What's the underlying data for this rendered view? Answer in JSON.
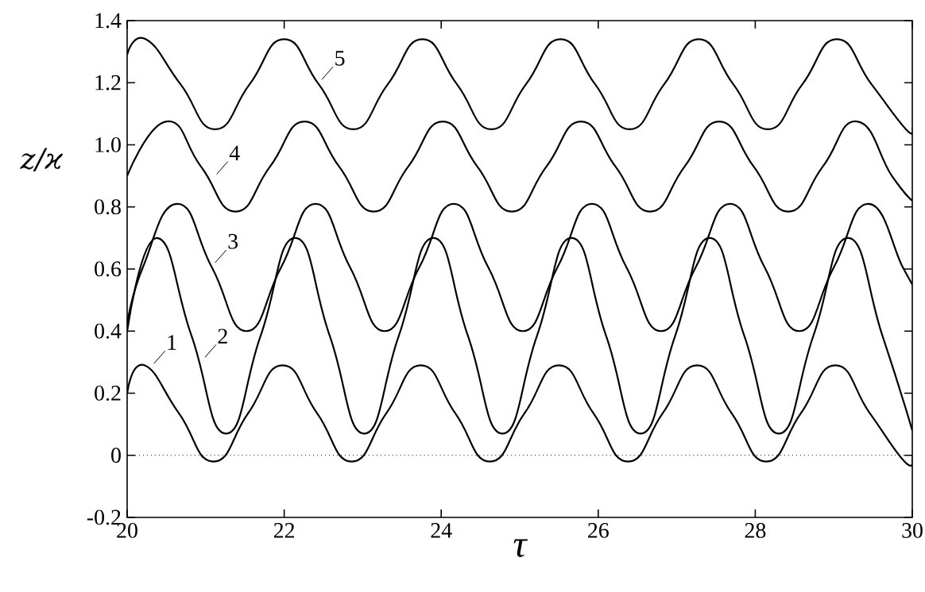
{
  "chart_data": {
    "type": "line",
    "xlabel": "τ",
    "ylabel": "z/ϰ",
    "xlim": [
      20,
      30
    ],
    "ylim": [
      -0.2,
      1.4
    ],
    "xticks": [
      20,
      22,
      24,
      26,
      28,
      30
    ],
    "yticks": [
      -0.2,
      0,
      0.2,
      0.4,
      0.6,
      0.8,
      {
        "value": 1,
        "label": "1.0"
      },
      1.2,
      1.4
    ],
    "grid": false,
    "marker": "none",
    "line_style": "solid",
    "ref_lines": [
      {
        "axis": "y",
        "value": 0,
        "color": "#000000",
        "line_style": "dotted"
      }
    ],
    "annotations": [
      {
        "text": "1",
        "x": 20.3,
        "y": 0.28
      },
      {
        "text": "2",
        "x": 20.95,
        "y": 0.3
      },
      {
        "text": "3",
        "x": 21.08,
        "y": 0.605
      },
      {
        "text": "4",
        "x": 21.1,
        "y": 0.89
      },
      {
        "text": "5",
        "x": 22.44,
        "y": 1.195
      }
    ],
    "series": [
      {
        "color": "#000000",
        "x": [
          20,
          20.22,
          20.66,
          21.1,
          21.54,
          21.98,
          22.42,
          22.86,
          23.3,
          23.74,
          24.18,
          24.62,
          25.06,
          25.5,
          25.94,
          26.38,
          26.82,
          27.26,
          27.7,
          28.14,
          28.58,
          29.02,
          29.46,
          29.9,
          30
        ],
        "values": [
          0.2,
          0.29,
          0.135,
          -0.02,
          0.135,
          0.29,
          0.135,
          -0.02,
          0.135,
          0.29,
          0.135,
          -0.02,
          0.135,
          0.29,
          0.135,
          -0.02,
          0.135,
          0.29,
          0.135,
          -0.02,
          0.135,
          0.29,
          0.135,
          -0.02,
          -0.01
        ]
      },
      {
        "color": "#000000",
        "x": [
          20,
          20.38,
          20.82,
          21.26,
          21.7,
          22.14,
          22.58,
          23.02,
          23.46,
          23.9,
          24.34,
          24.78,
          25.22,
          25.66,
          26.1,
          26.54,
          26.98,
          27.42,
          27.86,
          28.3,
          28.74,
          29.18,
          29.62,
          30
        ],
        "values": [
          0.4,
          0.7,
          0.385,
          0.07,
          0.385,
          0.7,
          0.385,
          0.07,
          0.385,
          0.7,
          0.385,
          0.07,
          0.385,
          0.7,
          0.385,
          0.07,
          0.385,
          0.7,
          0.385,
          0.07,
          0.385,
          0.7,
          0.385,
          0.08
        ]
      },
      {
        "color": "#000000",
        "x": [
          20,
          20.2,
          20.64,
          21.08,
          21.52,
          21.96,
          22.4,
          22.84,
          23.28,
          23.72,
          24.16,
          24.6,
          25.04,
          25.48,
          25.92,
          26.36,
          26.8,
          27.24,
          27.68,
          28.12,
          28.56,
          29.0,
          29.44,
          29.88,
          30
        ],
        "values": [
          0.42,
          0.605,
          0.81,
          0.605,
          0.4,
          0.605,
          0.81,
          0.605,
          0.4,
          0.605,
          0.81,
          0.605,
          0.4,
          0.605,
          0.81,
          0.605,
          0.4,
          0.605,
          0.81,
          0.605,
          0.4,
          0.605,
          0.81,
          0.605,
          0.55
        ]
      },
      {
        "color": "#000000",
        "x": [
          20,
          20.5,
          20.94,
          21.38,
          21.82,
          22.26,
          22.7,
          23.14,
          23.58,
          24.02,
          24.46,
          24.9,
          25.34,
          25.78,
          26.22,
          26.66,
          27.1,
          27.54,
          27.98,
          28.42,
          28.86,
          29.3,
          29.74,
          30
        ],
        "values": [
          0.9,
          1.075,
          0.93,
          0.785,
          0.93,
          1.075,
          0.93,
          0.785,
          0.93,
          1.075,
          0.93,
          0.785,
          0.93,
          1.075,
          0.93,
          0.785,
          0.93,
          1.075,
          0.93,
          0.785,
          0.93,
          1.075,
          0.9,
          0.82
        ]
      },
      {
        "color": "#000000",
        "x": [
          20,
          20.24,
          20.68,
          21.12,
          21.56,
          22.0,
          22.44,
          22.88,
          23.32,
          23.76,
          24.2,
          24.64,
          25.08,
          25.52,
          25.96,
          26.4,
          26.84,
          27.28,
          27.72,
          28.16,
          28.6,
          29.04,
          29.48,
          29.92,
          30
        ],
        "values": [
          1.29,
          1.34,
          1.195,
          1.05,
          1.195,
          1.34,
          1.195,
          1.05,
          1.195,
          1.34,
          1.195,
          1.05,
          1.195,
          1.34,
          1.195,
          1.05,
          1.195,
          1.34,
          1.195,
          1.05,
          1.195,
          1.34,
          1.195,
          1.05,
          1.055
        ]
      }
    ]
  }
}
